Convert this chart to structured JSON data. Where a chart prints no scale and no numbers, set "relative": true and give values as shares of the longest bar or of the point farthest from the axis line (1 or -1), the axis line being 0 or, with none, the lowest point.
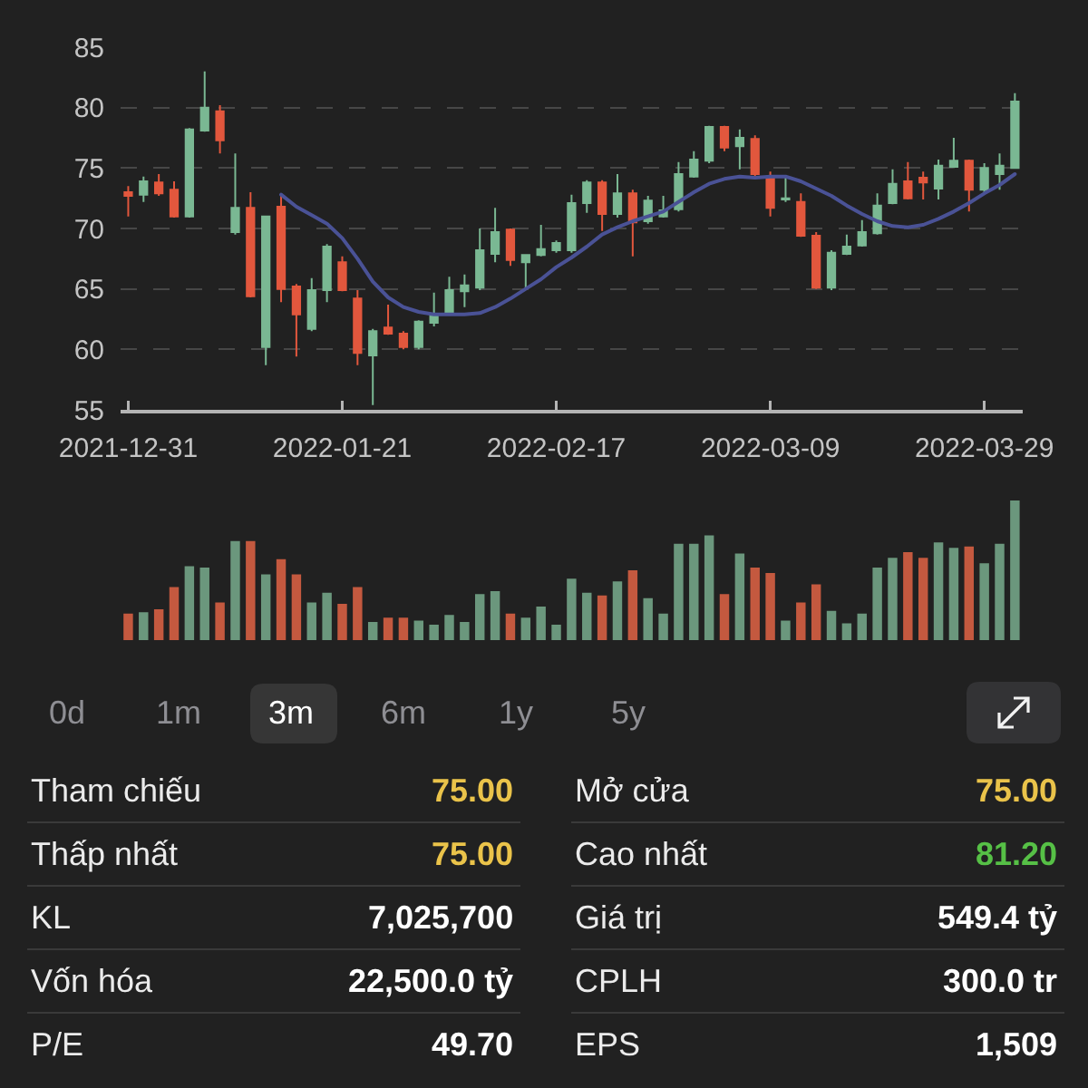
{
  "chart_data": [
    {
      "type": "candlestick",
      "categories": [
        "2021-12-31",
        null,
        null,
        null,
        null,
        null,
        null,
        null,
        null,
        null,
        null,
        null,
        null,
        null,
        "2022-01-21",
        null,
        null,
        null,
        null,
        null,
        null,
        null,
        null,
        null,
        null,
        null,
        null,
        null,
        "2022-02-17",
        null,
        null,
        null,
        null,
        null,
        null,
        null,
        null,
        null,
        null,
        null,
        null,
        null,
        "2022-03-09",
        null,
        null,
        null,
        null,
        null,
        null,
        null,
        null,
        null,
        null,
        null,
        null,
        null,
        "2022-03-29",
        null,
        null
      ],
      "ohlc": [
        [
          73.0,
          73.5,
          71.0,
          72.7
        ],
        [
          72.8,
          74.3,
          72.2,
          73.9
        ],
        [
          73.8,
          74.5,
          72.7,
          72.9
        ],
        [
          73.2,
          73.9,
          70.9,
          71.0
        ],
        [
          71.0,
          78.3,
          70.9,
          78.2
        ],
        [
          78.1,
          83.0,
          78.0,
          80.0
        ],
        [
          79.7,
          80.2,
          76.2,
          77.3
        ],
        [
          69.7,
          76.2,
          69.5,
          71.7
        ],
        [
          71.7,
          73.0,
          64.3,
          64.4
        ],
        [
          60.2,
          71.0,
          58.7,
          71.0
        ],
        [
          71.8,
          72.9,
          63.9,
          65.0
        ],
        [
          65.2,
          65.4,
          59.4,
          62.9
        ],
        [
          61.7,
          65.9,
          61.5,
          64.9
        ],
        [
          64.9,
          68.7,
          63.9,
          68.5
        ],
        [
          67.2,
          67.7,
          64.8,
          64.9
        ],
        [
          64.2,
          64.9,
          58.7,
          59.7
        ],
        [
          59.5,
          61.7,
          55.4,
          61.5
        ],
        [
          61.8,
          63.7,
          61.2,
          61.3
        ],
        [
          61.3,
          61.5,
          60.0,
          60.2
        ],
        [
          60.2,
          62.4,
          60.0,
          62.3
        ],
        [
          62.2,
          64.7,
          61.9,
          62.9
        ],
        [
          62.9,
          66.0,
          62.8,
          64.9
        ],
        [
          64.8,
          66.2,
          63.5,
          65.3
        ],
        [
          65.1,
          70.0,
          64.9,
          68.2
        ],
        [
          67.9,
          71.7,
          67.2,
          69.7
        ],
        [
          69.9,
          70.0,
          66.9,
          67.4
        ],
        [
          67.2,
          67.8,
          65.0,
          67.8
        ],
        [
          67.8,
          70.3,
          67.7,
          68.3
        ],
        [
          68.2,
          69.0,
          68.0,
          68.8
        ],
        [
          68.2,
          72.8,
          68.0,
          72.1
        ],
        [
          72.1,
          74.0,
          71.3,
          73.8
        ],
        [
          73.8,
          74.0,
          69.8,
          71.2
        ],
        [
          71.2,
          74.5,
          70.9,
          72.9
        ],
        [
          72.9,
          73.2,
          67.7,
          70.5
        ],
        [
          70.6,
          72.7,
          70.4,
          72.3
        ],
        [
          71.0,
          72.7,
          70.9,
          71.5
        ],
        [
          71.6,
          75.5,
          71.4,
          74.5
        ],
        [
          74.3,
          76.4,
          74.2,
          75.7
        ],
        [
          75.6,
          78.5,
          75.4,
          78.4
        ],
        [
          78.4,
          78.5,
          76.4,
          76.7
        ],
        [
          76.8,
          78.2,
          74.9,
          77.5
        ],
        [
          77.4,
          77.7,
          74.3,
          74.5
        ],
        [
          74.2,
          74.7,
          71.0,
          71.7
        ],
        [
          72.4,
          74.3,
          72.2,
          72.5
        ],
        [
          72.2,
          72.9,
          69.3,
          69.4
        ],
        [
          69.4,
          69.7,
          65.0,
          65.1
        ],
        [
          65.1,
          68.2,
          64.9,
          68.0
        ],
        [
          67.9,
          69.5,
          67.8,
          68.5
        ],
        [
          68.6,
          70.7,
          68.5,
          69.7
        ],
        [
          69.6,
          72.9,
          69.5,
          71.9
        ],
        [
          72.1,
          74.9,
          72.0,
          73.7
        ],
        [
          73.9,
          75.5,
          72.4,
          72.5
        ],
        [
          74.2,
          74.7,
          72.4,
          73.8
        ],
        [
          73.3,
          75.7,
          72.4,
          75.2
        ],
        [
          75.1,
          77.5,
          75.0,
          75.6
        ],
        [
          75.6,
          75.7,
          71.4,
          73.2
        ],
        [
          73.2,
          75.4,
          72.9,
          75.0
        ],
        [
          74.5,
          76.2,
          73.2,
          75.2
        ],
        [
          75.0,
          81.2,
          75.0,
          80.5
        ]
      ],
      "colors": [
        "#e2573d",
        "#7ab893",
        "#e2573d",
        "#e2573d",
        "#7ab893",
        "#7ab893",
        "#e2573d",
        "#7ab893",
        "#e2573d",
        "#7ab893",
        "#e2573d",
        "#e2573d",
        "#7ab893",
        "#7ab893",
        "#e2573d",
        "#e2573d",
        "#7ab893",
        "#e2573d",
        "#e2573d",
        "#7ab893",
        "#7ab893",
        "#7ab893",
        "#7ab893",
        "#7ab893",
        "#7ab893",
        "#e2573d",
        "#7ab893",
        "#7ab893",
        "#7ab893",
        "#7ab893",
        "#7ab893",
        "#e2573d",
        "#7ab893",
        "#e2573d",
        "#7ab893",
        "#7ab893",
        "#7ab893",
        "#7ab893",
        "#7ab893",
        "#e2573d",
        "#7ab893",
        "#e2573d",
        "#e2573d",
        "#7ab893",
        "#e2573d",
        "#e2573d",
        "#7ab893",
        "#7ab893",
        "#7ab893",
        "#7ab893",
        "#7ab893",
        "#e2573d",
        "#e2573d",
        "#7ab893",
        "#7ab893",
        "#e2573d",
        "#7ab893",
        "#7ab893",
        "#7ab893"
      ],
      "ylim": [
        55,
        85
      ],
      "yticks": [
        55,
        60,
        65,
        70,
        75,
        80,
        85
      ],
      "grid": "y",
      "series": [
        {
          "type": "line",
          "color": "#4a5296",
          "values": [
            null,
            null,
            null,
            null,
            null,
            null,
            null,
            null,
            null,
            null,
            72.8,
            71.8,
            71.1,
            70.4,
            69.2,
            67.5,
            65.6,
            64.3,
            63.5,
            63.1,
            62.9,
            62.9,
            62.9,
            63.0,
            63.5,
            64.2,
            65.0,
            65.8,
            66.8,
            67.6,
            68.5,
            69.5,
            70.1,
            70.6,
            71.0,
            71.4,
            72.2,
            73.0,
            73.7,
            74.1,
            74.3,
            74.2,
            74.3,
            74.3,
            73.9,
            73.3,
            72.7,
            71.9,
            71.2,
            70.6,
            70.2,
            70.1,
            70.3,
            70.8,
            71.4,
            72.1,
            72.9,
            73.6,
            74.5
          ]
        }
      ]
    },
    {
      "type": "bar",
      "relative": true,
      "tick_labels": false,
      "categories": [
        "2021-12-31",
        null,
        null,
        null,
        null,
        null,
        null,
        null,
        null,
        null,
        null,
        null,
        null,
        null,
        "2022-01-21",
        null,
        null,
        null,
        null,
        null,
        null,
        null,
        null,
        null,
        null,
        null,
        null,
        null,
        "2022-02-17",
        null,
        null,
        null,
        null,
        null,
        null,
        null,
        null,
        null,
        null,
        null,
        null,
        null,
        "2022-03-09",
        null,
        null,
        null,
        null,
        null,
        null,
        null,
        null,
        null,
        null,
        null,
        null,
        null,
        "2022-03-29",
        null,
        null
      ],
      "values": [
        0.19,
        0.2,
        0.22,
        0.38,
        0.53,
        0.52,
        0.27,
        0.71,
        0.71,
        0.47,
        0.58,
        0.47,
        0.27,
        0.34,
        0.26,
        0.38,
        0.13,
        0.16,
        0.16,
        0.14,
        0.11,
        0.18,
        0.13,
        0.33,
        0.35,
        0.19,
        0.16,
        0.24,
        0.11,
        0.44,
        0.34,
        0.32,
        0.42,
        0.5,
        0.3,
        0.19,
        0.69,
        0.69,
        0.75,
        0.33,
        0.62,
        0.52,
        0.48,
        0.14,
        0.27,
        0.4,
        0.21,
        0.12,
        0.19,
        0.52,
        0.59,
        0.63,
        0.59,
        0.7,
        0.66,
        0.67,
        0.55,
        0.69,
        1
      ],
      "colors": [
        "#c4593f",
        "#6b977d",
        "#c4593f",
        "#c4593f",
        "#6b977d",
        "#6b977d",
        "#c4593f",
        "#6b977d",
        "#c4593f",
        "#6b977d",
        "#c4593f",
        "#c4593f",
        "#6b977d",
        "#6b977d",
        "#c4593f",
        "#c4593f",
        "#6b977d",
        "#c4593f",
        "#c4593f",
        "#6b977d",
        "#6b977d",
        "#6b977d",
        "#6b977d",
        "#6b977d",
        "#6b977d",
        "#c4593f",
        "#6b977d",
        "#6b977d",
        "#6b977d",
        "#6b977d",
        "#6b977d",
        "#c4593f",
        "#6b977d",
        "#c4593f",
        "#6b977d",
        "#6b977d",
        "#6b977d",
        "#6b977d",
        "#6b977d",
        "#c4593f",
        "#6b977d",
        "#c4593f",
        "#c4593f",
        "#6b977d",
        "#c4593f",
        "#c4593f",
        "#6b977d",
        "#6b977d",
        "#6b977d",
        "#6b977d",
        "#6b977d",
        "#c4593f",
        "#c4593f",
        "#6b977d",
        "#6b977d",
        "#c4593f",
        "#6b977d",
        "#6b977d",
        "#6b977d"
      ]
    },
    {
      "type": "other",
      "annotations": [
        "0d",
        "1m",
        "3m",
        "6m",
        "1y",
        "5y",
        "Tham chiếu",
        "75.00",
        "Mở cửa",
        "75.00",
        "Thấp nhất",
        "75.00",
        "Cao nhất",
        "81.20",
        "KL",
        "7,025,700",
        "Giá trị",
        "549.4 tỷ",
        "Vốn hóa",
        "22,500.0 tỷ",
        "CPLH",
        "300.0 tr",
        "P/E",
        "49.70",
        "EPS",
        "1,509"
      ],
      "colors": [
        "#8e8e93",
        "#8e8e93",
        "#ffffff",
        "#8e8e93",
        "#8e8e93",
        "#8e8e93",
        "#ebebeb",
        "#eac34a",
        "#ebebeb",
        "#eac34a",
        "#ebebeb",
        "#eac34a",
        "#ebebeb",
        "#56c046",
        "#ebebeb",
        "#ffffff",
        "#ebebeb",
        "#ffffff",
        "#ebebeb",
        "#ffffff",
        "#ebebeb",
        "#ffffff",
        "#ebebeb",
        "#ffffff",
        "#ebebeb",
        "#ffffff"
      ]
    }
  ]
}
